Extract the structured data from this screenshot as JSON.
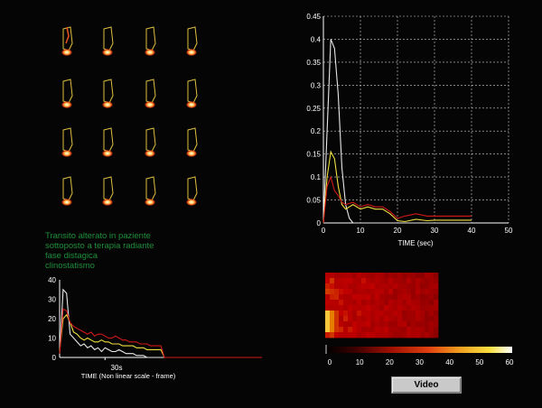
{
  "caption": {
    "lines": [
      "Transito alterato in paziente",
      "sottoposto a terapia  radiante",
      "fase distagica",
      "clinostatismo"
    ]
  },
  "video_button": {
    "label": "Video"
  },
  "heatmap": {
    "scale_ticks": [
      "0",
      "10",
      "20",
      "30",
      "40",
      "50",
      "60"
    ]
  },
  "colors": {
    "white_series": "#e8e8e8",
    "yellow_series": "#f0e040",
    "red_series": "#d01818",
    "caption_text": "#1f8f3a"
  },
  "chart_data": [
    {
      "type": "line",
      "xlabel": "TIME (sec)",
      "ylabel": "",
      "xlim": [
        0,
        50
      ],
      "ylim": [
        0,
        0.45
      ],
      "xticks": [
        "0",
        "10",
        "20",
        "30",
        "40",
        "50"
      ],
      "yticks": [
        "0",
        "0.05",
        "0.1",
        "0.15",
        "0.2",
        "0.25",
        "0.3",
        "0.35",
        "0.4",
        "0.45"
      ],
      "grid": true,
      "series": [
        {
          "color": "#e8e8e8",
          "x": [
            0,
            1,
            2,
            3,
            4,
            5,
            6,
            7,
            8,
            10,
            12,
            15,
            18,
            20,
            25,
            30,
            35,
            40
          ],
          "y": [
            0,
            0.2,
            0.4,
            0.38,
            0.28,
            0.12,
            0.04,
            0.01,
            0,
            0,
            0,
            0,
            0,
            0,
            0,
            0,
            0,
            0
          ]
        },
        {
          "color": "#f0e040",
          "x": [
            0,
            1,
            2,
            3,
            4,
            5,
            6,
            8,
            10,
            12,
            14,
            16,
            18,
            20,
            22,
            25,
            28,
            30,
            35,
            40
          ],
          "y": [
            0,
            0.1,
            0.155,
            0.14,
            0.08,
            0.04,
            0.03,
            0.04,
            0.03,
            0.035,
            0.03,
            0.03,
            0.02,
            0.005,
            0.003,
            0.008,
            0.005,
            0.006,
            0.006,
            0.006
          ]
        },
        {
          "color": "#d01818",
          "x": [
            0,
            1,
            2,
            3,
            4,
            5,
            6,
            8,
            10,
            12,
            14,
            16,
            18,
            20,
            22,
            25,
            28,
            30,
            35,
            40
          ],
          "y": [
            0,
            0.08,
            0.1,
            0.07,
            0.06,
            0.045,
            0.04,
            0.045,
            0.035,
            0.04,
            0.035,
            0.035,
            0.025,
            0.01,
            0.015,
            0.02,
            0.015,
            0.015,
            0.015,
            0.015
          ]
        }
      ]
    },
    {
      "type": "line",
      "xlabel": "TIME (Non linear scale - frame)",
      "ylabel": "",
      "ylim": [
        0,
        40
      ],
      "yticks": [
        "0",
        "10",
        "20",
        "30",
        "40"
      ],
      "xtick_label": "30s",
      "xlim": [
        0,
        60
      ],
      "xtick_position": 13,
      "grid": false,
      "series": [
        {
          "color": "#e8e8e8",
          "x": [
            0,
            1,
            2,
            3,
            4,
            5,
            6,
            7,
            8,
            9,
            10,
            11,
            12,
            13,
            14,
            15,
            16,
            17,
            18,
            19,
            20,
            21,
            22,
            23,
            24,
            25,
            26,
            27,
            28,
            29,
            30,
            60
          ],
          "y": [
            2,
            35,
            33,
            12,
            10,
            8,
            6,
            7,
            5,
            6,
            4,
            5,
            3,
            5,
            4,
            3,
            3,
            4,
            3,
            2,
            2,
            2,
            1,
            1,
            1,
            0,
            0,
            0,
            0,
            0,
            0,
            0
          ]
        },
        {
          "color": "#f0e040",
          "x": [
            0,
            1,
            2,
            3,
            4,
            5,
            6,
            7,
            8,
            9,
            10,
            11,
            12,
            13,
            14,
            15,
            16,
            17,
            18,
            19,
            20,
            21,
            22,
            23,
            24,
            25,
            26,
            27,
            28,
            29,
            30,
            60
          ],
          "y": [
            3,
            20,
            22,
            18,
            13,
            12,
            10,
            9,
            10,
            9,
            8,
            8,
            9,
            8,
            8,
            7,
            7,
            7,
            6,
            6,
            6,
            6,
            5,
            5,
            5,
            4,
            4,
            4,
            4,
            4,
            0,
            0
          ]
        },
        {
          "color": "#d01818",
          "x": [
            0,
            1,
            2,
            3,
            4,
            5,
            6,
            7,
            8,
            9,
            10,
            11,
            12,
            13,
            14,
            15,
            16,
            17,
            18,
            19,
            20,
            21,
            22,
            23,
            24,
            25,
            26,
            27,
            28,
            29,
            30,
            60
          ],
          "y": [
            2,
            25,
            24,
            18,
            16,
            15,
            14,
            13,
            12,
            13,
            11,
            12,
            12,
            11,
            10,
            10,
            11,
            10,
            9,
            9,
            8,
            8,
            8,
            7,
            7,
            7,
            6,
            6,
            6,
            6,
            0,
            0
          ]
        }
      ]
    }
  ]
}
